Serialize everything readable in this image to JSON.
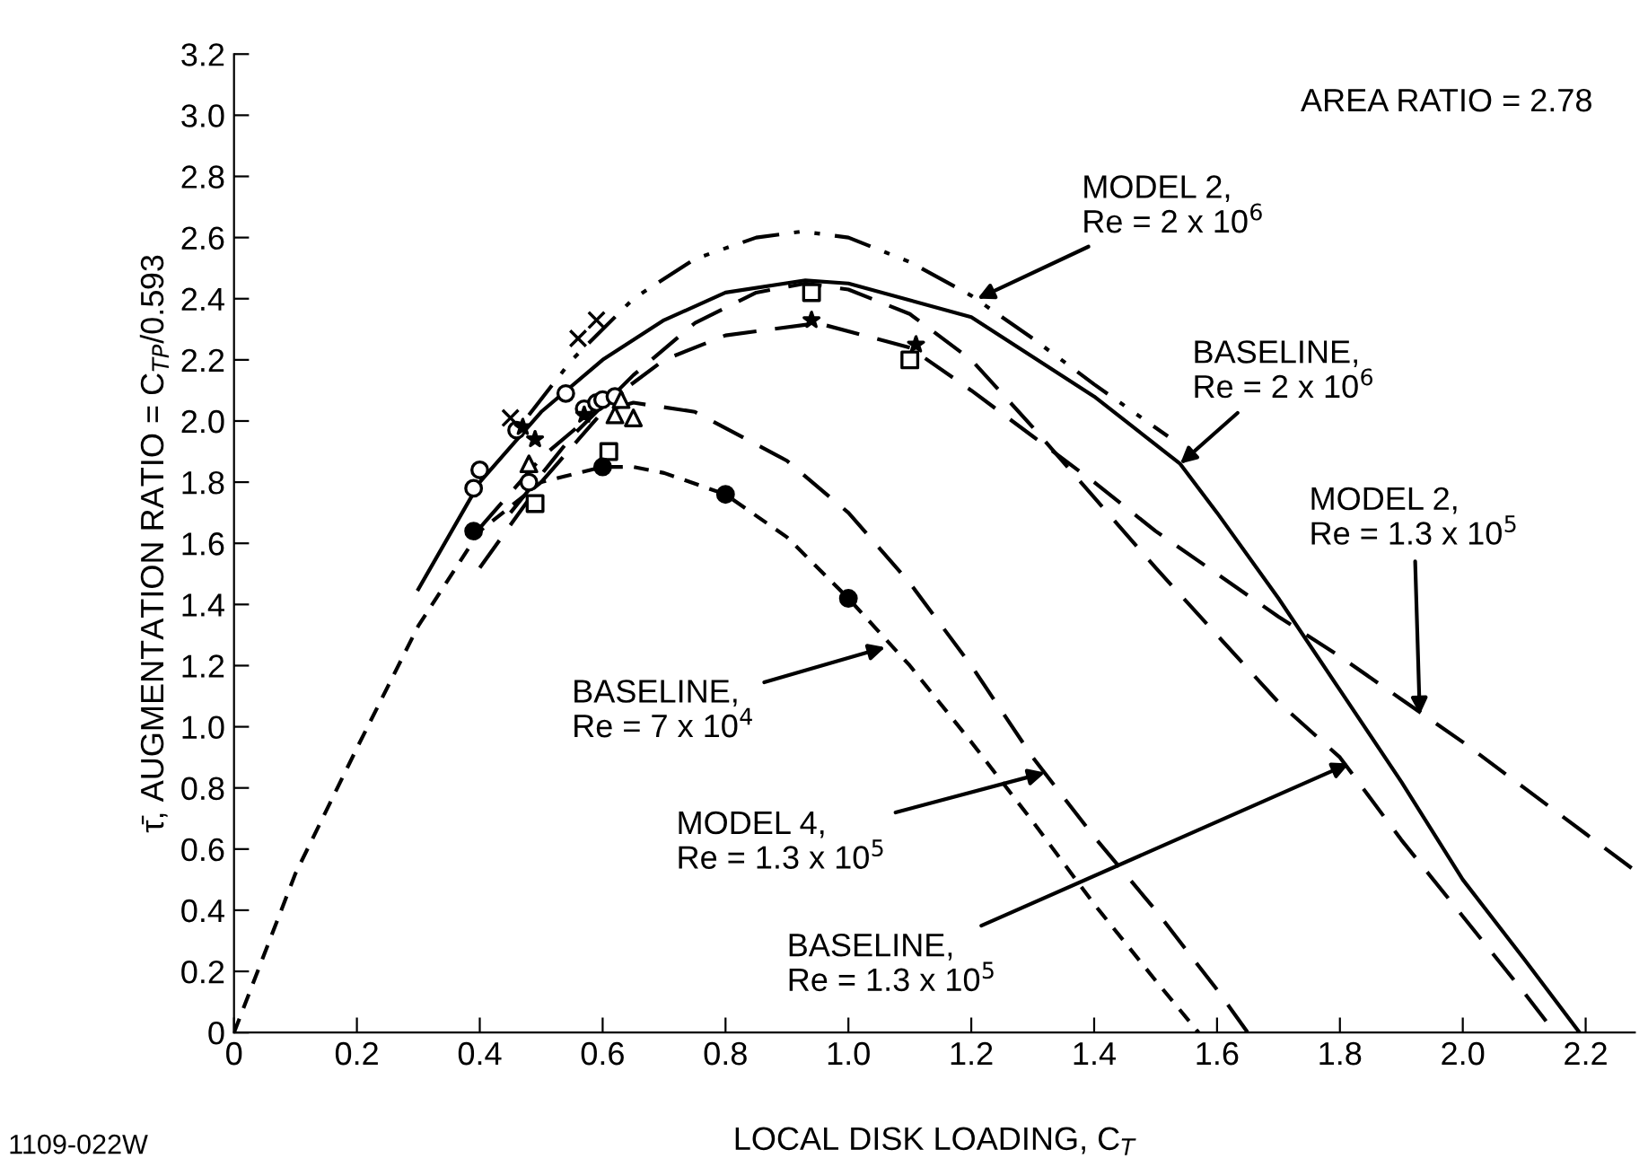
{
  "chart_data": {
    "type": "line",
    "xlabel": "LOCAL DISK LOADING, C$_{T}$",
    "ylabel": "τ̄, AUGMENTATION RATIO = C$_{TP}$/0.593",
    "xlim": [
      0,
      2.28
    ],
    "xticks": [
      0,
      0.2,
      0.4,
      0.6,
      0.8,
      {
        "value": 1,
        "label": "1.0"
      },
      1.2,
      1.4,
      1.6,
      1.8,
      {
        "value": 2,
        "label": "2.0"
      },
      2.2
    ],
    "ylim": [
      0,
      3.2
    ],
    "yticks": [
      0,
      0.2,
      0.4,
      0.6,
      0.8,
      {
        "value": 1,
        "label": "1.0"
      },
      1.2,
      1.4,
      1.6,
      1.8,
      {
        "value": 2,
        "label": "2.0"
      },
      2.2,
      2.4,
      2.6,
      2.8,
      {
        "value": 3,
        "label": "3.0"
      },
      3.2
    ],
    "grid": false,
    "legend": false,
    "marker": "none",
    "series": [
      {
        "line_style": "dotted",
        "color": "#000000",
        "x": [
          0,
          0.1,
          0.2,
          0.3,
          0.4,
          0.5,
          0.6,
          0.65,
          0.7,
          0.8,
          0.9,
          1.0,
          1.1,
          1.2,
          1.3,
          1.4,
          1.5,
          1.57
        ],
        "values": [
          0,
          0.52,
          0.93,
          1.33,
          1.64,
          1.8,
          1.85,
          1.85,
          1.83,
          1.76,
          1.62,
          1.42,
          1.2,
          0.95,
          0.69,
          0.42,
          0.17,
          0
        ]
      },
      {
        "line_style": "dashed",
        "color": "#000000",
        "x": [
          0.4,
          0.5,
          0.6,
          0.65,
          0.75,
          0.9,
          1.0,
          1.1,
          1.2,
          1.3,
          1.4,
          1.5,
          1.6,
          1.65
        ],
        "values": [
          1.52,
          1.8,
          2.03,
          2.06,
          2.03,
          1.87,
          1.7,
          1.47,
          1.2,
          0.9,
          0.64,
          0.4,
          0.14,
          0
        ]
      },
      {
        "line_style": "solid",
        "color": "#000000",
        "x": [
          0.3,
          0.4,
          0.5,
          0.6,
          0.7,
          0.8,
          0.93,
          1.0,
          1.2,
          1.4,
          1.54,
          1.6,
          1.7,
          1.8,
          1.9,
          2.0,
          2.1,
          2.19
        ],
        "values": [
          1.45,
          1.8,
          2.03,
          2.2,
          2.33,
          2.42,
          2.46,
          2.45,
          2.34,
          2.08,
          1.86,
          1.7,
          1.42,
          1.12,
          0.82,
          0.5,
          0.24,
          0
        ]
      },
      {
        "line_style": "dashdot",
        "color": "#000000",
        "x": [
          0.48,
          0.55,
          0.65,
          0.75,
          0.85,
          0.925,
          1.0,
          1.1,
          1.2,
          1.3,
          1.4,
          1.52
        ],
        "values": [
          2.02,
          2.2,
          2.4,
          2.53,
          2.6,
          2.62,
          2.6,
          2.52,
          2.41,
          2.27,
          2.12,
          1.95
        ]
      },
      {
        "line_style": "dashed",
        "color": "#000000",
        "x": [
          0.45,
          0.55,
          0.65,
          0.75,
          0.85,
          0.93,
          1.0,
          1.1,
          1.2,
          1.3,
          1.4,
          1.5,
          1.6,
          1.7,
          1.8,
          1.9,
          2.0,
          2.1,
          2.15
        ],
        "values": [
          1.7,
          1.95,
          2.15,
          2.32,
          2.42,
          2.45,
          2.43,
          2.35,
          2.2,
          1.98,
          1.75,
          1.52,
          1.3,
          1.08,
          0.9,
          0.63,
          0.38,
          0.13,
          0
        ]
      },
      {
        "line_style": "dashed",
        "color": "#000000",
        "x": [
          0.4,
          0.5,
          0.6,
          0.7,
          0.8,
          0.95,
          1.1,
          1.2,
          1.3,
          1.4,
          1.5,
          1.6,
          1.7,
          1.8,
          1.9,
          2.0,
          2.1,
          2.2,
          2.28
        ],
        "values": [
          1.65,
          1.88,
          2.05,
          2.2,
          2.28,
          2.32,
          2.24,
          2.1,
          1.95,
          1.8,
          1.64,
          1.5,
          1.36,
          1.23,
          1.09,
          0.95,
          0.8,
          0.65,
          0.53
        ]
      },
      {
        "type": "scatter",
        "marker": "circle",
        "color": "#ffffff",
        "x": [
          0.39,
          0.4,
          0.46,
          0.48,
          0.54,
          0.57,
          0.59,
          0.6,
          0.62
        ],
        "values": [
          1.78,
          1.84,
          1.97,
          1.8,
          2.09,
          2.04,
          2.06,
          2.07,
          2.08
        ]
      },
      {
        "type": "scatter",
        "marker": "square",
        "color": "#ffffff",
        "x": [
          0.49,
          0.61,
          0.94,
          1.1
        ],
        "values": [
          1.73,
          1.9,
          2.42,
          2.2
        ]
      },
      {
        "type": "scatter",
        "marker": "triangle",
        "color": "#ffffff",
        "x": [
          0.48,
          0.62,
          0.65,
          0.63
        ],
        "values": [
          1.86,
          2.02,
          2.01,
          2.07
        ]
      },
      {
        "type": "scatter",
        "marker": "star",
        "color": "#000000",
        "x": [
          0.47,
          0.49,
          0.57,
          0.94,
          1.11
        ],
        "values": [
          1.98,
          1.94,
          2.02,
          2.33,
          2.25
        ]
      },
      {
        "type": "scatter",
        "marker": "cross",
        "color": "#000000",
        "x": [
          0.45,
          0.56,
          0.59
        ],
        "values": [
          2.01,
          2.27,
          2.33
        ]
      },
      {
        "type": "scatter",
        "marker": "circle",
        "color": "#000000",
        "x": [
          0.39,
          0.6,
          0.8,
          1.0
        ],
        "values": [
          1.64,
          1.85,
          1.76,
          1.42
        ]
      }
    ],
    "annotations": [
      {
        "text": "BASELINE,\nRe = 7 x 10$^{4}$",
        "x": 1.06,
        "y": 1.26
      },
      {
        "text": "MODEL 4,\nRe = 1.3 x 10$^{5}$",
        "x": 1.32,
        "y": 0.85
      },
      {
        "text": "BASELINE,\nRe = 1.3 x 10$^{5}$",
        "x": 1.815,
        "y": 0.88
      },
      {
        "text": "MODEL 2,\nRe = 1.3 x 10$^{5}$",
        "x": 1.93,
        "y": 1.04
      },
      {
        "text": "BASELINE,\nRe = 2 x 10$^{6}$",
        "x": 1.54,
        "y": 1.86
      },
      {
        "text": "MODEL 2,\nRe = 2 x 10$^{6}$",
        "x": 1.21,
        "y": 2.4
      },
      "AREA RATIO = 2.78",
      "1109-022W"
    ]
  }
}
